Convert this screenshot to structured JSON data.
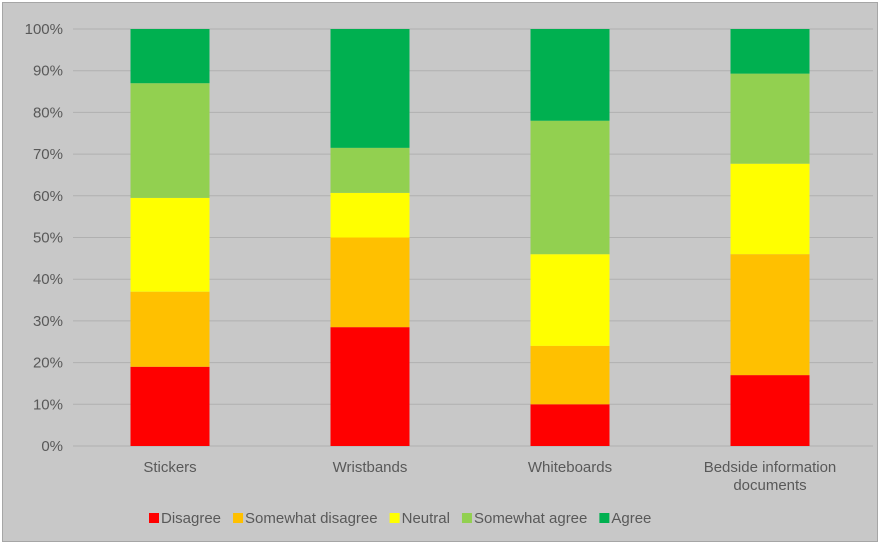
{
  "chart_data": {
    "type": "bar",
    "stacked": true,
    "percent": true,
    "categories": [
      "Stickers",
      "Wristbands",
      "Whiteboards",
      "Bedside information documents"
    ],
    "category_lines": [
      [
        "Stickers"
      ],
      [
        "Wristbands"
      ],
      [
        "Whiteboards"
      ],
      [
        "Bedside information",
        "documents"
      ]
    ],
    "series": [
      {
        "name": "Disagree",
        "color": "#ff0000",
        "values": [
          19,
          28.5,
          10,
          17
        ]
      },
      {
        "name": "Somewhat disagree",
        "color": "#ffc000",
        "values": [
          18,
          21.5,
          14,
          29
        ]
      },
      {
        "name": "Neutral",
        "color": "#ffff00",
        "values": [
          22.5,
          10.7,
          22,
          21.7
        ]
      },
      {
        "name": "Somewhat agree",
        "color": "#92d050",
        "values": [
          27.5,
          10.8,
          32,
          21.6
        ]
      },
      {
        "name": "Agree",
        "color": "#00b050",
        "values": [
          13,
          28.5,
          22,
          10.7
        ]
      }
    ],
    "yticks": [
      "0%",
      "10%",
      "20%",
      "30%",
      "40%",
      "50%",
      "60%",
      "70%",
      "80%",
      "90%",
      "100%"
    ],
    "ylim": [
      0,
      100
    ],
    "grid": true,
    "legend": "bottom"
  }
}
